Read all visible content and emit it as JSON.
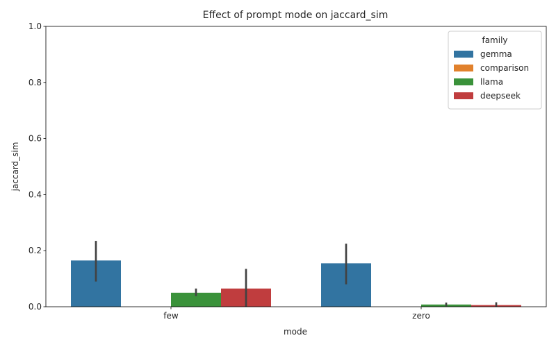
{
  "chart_data": {
    "type": "bar",
    "title": "Effect of prompt mode on jaccard_sim",
    "xlabel": "mode",
    "ylabel": "jaccard_sim",
    "ylim": [
      0,
      1.0
    ],
    "yticks": [
      "0.0",
      "0.2",
      "0.4",
      "0.6",
      "0.8",
      "1.0"
    ],
    "categories": [
      "few",
      "zero"
    ],
    "legend": {
      "title": "family",
      "placement": "top-right"
    },
    "grid": false,
    "series": [
      {
        "name": "gemma",
        "color": "#3274a1",
        "values": [
          0.165,
          0.155
        ],
        "ci_low": [
          0.09,
          0.08
        ],
        "ci_high": [
          0.235,
          0.225
        ]
      },
      {
        "name": "comparison",
        "color": "#e1812c",
        "values": [
          0,
          0
        ],
        "ci_low": [
          0,
          0
        ],
        "ci_high": [
          0,
          0
        ]
      },
      {
        "name": "llama",
        "color": "#3a923a",
        "values": [
          0.05,
          0.008
        ],
        "ci_low": [
          0.038,
          0.002
        ],
        "ci_high": [
          0.065,
          0.015
        ]
      },
      {
        "name": "deepseek",
        "color": "#c03d3e",
        "values": [
          0.065,
          0.006
        ],
        "ci_low": [
          0.0,
          0.0
        ],
        "ci_high": [
          0.135,
          0.016
        ]
      }
    ]
  }
}
